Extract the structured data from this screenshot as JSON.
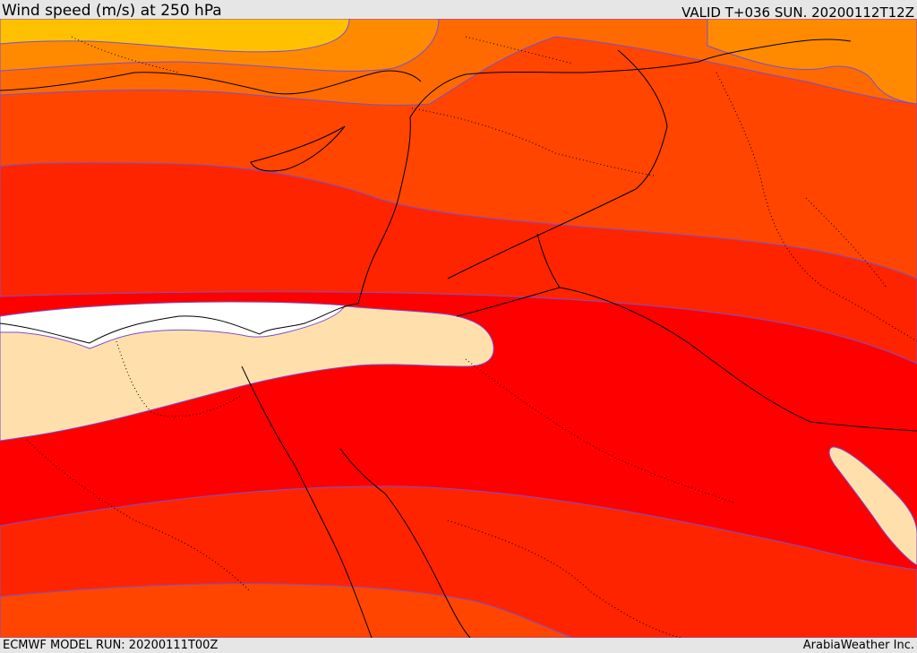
{
  "header": {
    "title": "Wind speed (m/s) at 250 hPa",
    "valid": "VALID T+036 SUN. 20200112T12Z"
  },
  "footer": {
    "model_run": "ECMWF MODEL RUN: 20200111T00Z",
    "credit": "ArabiaWeather Inc."
  },
  "colors": {
    "band_1": "#ffc000",
    "band_2": "#ff8a00",
    "band_3": "#ff6a00",
    "band_4": "#ff4500",
    "band_5": "#ff2400",
    "band_6": "#ff0000",
    "calm": "#ffe0ad",
    "lowest": "#ffffff"
  }
}
